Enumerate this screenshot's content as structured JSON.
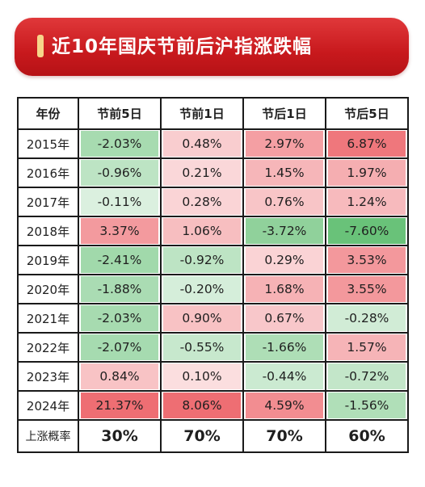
{
  "title": "近10年国庆节前后沪指涨跌幅",
  "colors": {
    "banner": "#c8191d",
    "positive_base": "#f4a7a9",
    "negative_base": "#8fd49b"
  },
  "chart_data": {
    "type": "table",
    "title": "近10年国庆节前后沪指涨跌幅",
    "header": [
      "年份",
      "节前5日",
      "节前1日",
      "节后1日",
      "节后5日"
    ],
    "rows": [
      {
        "year": "2015年",
        "values": [
          "-2.03%",
          "0.48%",
          "2.97%",
          "6.87%"
        ]
      },
      {
        "year": "2016年",
        "values": [
          "-0.96%",
          "0.21%",
          "1.45%",
          "1.97%"
        ]
      },
      {
        "year": "2017年",
        "values": [
          "-0.11%",
          "0.28%",
          "0.76%",
          "1.24%"
        ]
      },
      {
        "year": "2018年",
        "values": [
          "3.37%",
          "1.06%",
          "-3.72%",
          "-7.60%"
        ]
      },
      {
        "year": "2019年",
        "values": [
          "-2.41%",
          "-0.92%",
          "0.29%",
          "3.53%"
        ]
      },
      {
        "year": "2020年",
        "values": [
          "-1.88%",
          "-0.20%",
          "1.68%",
          "3.55%"
        ]
      },
      {
        "year": "2021年",
        "values": [
          "-2.03%",
          "0.90%",
          "0.67%",
          "-0.28%"
        ]
      },
      {
        "year": "2022年",
        "values": [
          "-2.07%",
          "-0.55%",
          "-1.66%",
          "1.57%"
        ]
      },
      {
        "year": "2023年",
        "values": [
          "0.84%",
          "0.10%",
          "-0.44%",
          "-0.72%"
        ]
      },
      {
        "year": "2024年",
        "values": [
          "21.37%",
          "8.06%",
          "4.59%",
          "-1.56%"
        ]
      }
    ],
    "numeric_values": [
      [
        -2.03,
        0.48,
        2.97,
        6.87
      ],
      [
        -0.96,
        0.21,
        1.45,
        1.97
      ],
      [
        -0.11,
        0.28,
        0.76,
        1.24
      ],
      [
        3.37,
        1.06,
        -3.72,
        -7.6
      ],
      [
        -2.41,
        -0.92,
        0.29,
        3.53
      ],
      [
        -1.88,
        -0.2,
        1.68,
        3.55
      ],
      [
        -2.03,
        0.9,
        0.67,
        -0.28
      ],
      [
        -2.07,
        -0.55,
        -1.66,
        1.57
      ],
      [
        0.84,
        0.1,
        -0.44,
        -0.72
      ],
      [
        21.37,
        8.06,
        4.59,
        -1.56
      ]
    ],
    "summary": {
      "label": "上涨概率",
      "values": [
        "30%",
        "70%",
        "70%",
        "60%"
      ]
    }
  }
}
